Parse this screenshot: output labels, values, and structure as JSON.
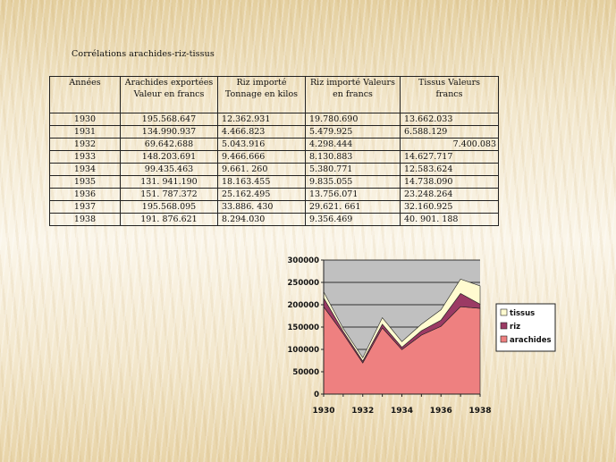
{
  "title": "Corrélations arachides-riz-tissus",
  "table": {
    "headers": [
      "Années",
      "Arachides exportées Valeur en francs",
      "Riz importé Tonnage en kilos",
      "Riz importé Valeurs en francs",
      "Tissus Valeurs francs"
    ],
    "rows": [
      [
        "1930",
        "195.568.647",
        "12.362.931",
        "19.780.690",
        "13.662.033"
      ],
      [
        "1931",
        "134.990.937",
        "4.466.823",
        "5.479.925",
        "6.588.129"
      ],
      [
        "1932",
        "69.642.688",
        "5.043.916",
        "4.298.444",
        "7.400.083"
      ],
      [
        "1933",
        "148.203.691",
        "9.466.666",
        "8.130.883",
        "14.627.717"
      ],
      [
        "1934",
        "99.435.463",
        "9.661. 260",
        "5.380.771",
        "12.583.624"
      ],
      [
        "1935",
        "131. 941.190",
        "18.163.455",
        "9.835.055",
        "14.738.090"
      ],
      [
        "1936",
        "151. 787.372",
        "25.162.495",
        "13.756.071",
        "23.248.264"
      ],
      [
        "1937",
        "195.568.095",
        "33.886. 430",
        "29.621. 661",
        "32.160.925"
      ],
      [
        "1938",
        "191. 876.621",
        "8.294.030",
        "9.356.469",
        "40. 901. 188"
      ]
    ]
  },
  "chart_data": {
    "type": "area",
    "stacked": true,
    "x": [
      1930,
      1931,
      1932,
      1933,
      1934,
      1935,
      1936,
      1937,
      1938
    ],
    "x_tick_labels": [
      "1930",
      "1932",
      "1934",
      "1936",
      "1938"
    ],
    "y_tick_labels": [
      "0",
      "50000",
      "100000",
      "150000",
      "200000",
      "250000",
      "300000"
    ],
    "ylim": [
      0,
      300000
    ],
    "grid": true,
    "legend_position": "right",
    "series": [
      {
        "name": "arachides",
        "color": "#ee8080",
        "values": [
          195569,
          134991,
          69643,
          148204,
          99435,
          131941,
          151787,
          195568,
          191877
        ]
      },
      {
        "name": "riz",
        "color": "#9b3a64",
        "values": [
          19781,
          5480,
          4298,
          8131,
          5381,
          9835,
          13756,
          29622,
          9356
        ]
      },
      {
        "name": "tissus",
        "color": "#fffbd0",
        "values": [
          13662,
          6588,
          7400,
          14628,
          12584,
          14738,
          23248,
          32161,
          40901
        ]
      }
    ],
    "plot_background": "#c0c0c0"
  }
}
